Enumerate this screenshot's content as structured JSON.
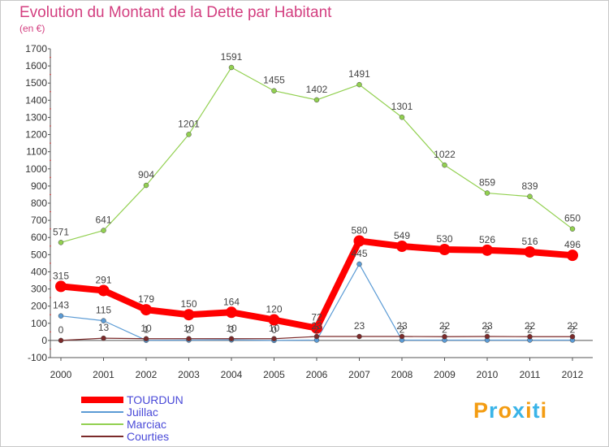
{
  "chart_data": {
    "type": "line",
    "title": "Evolution du Montant de la Dette par Habitant",
    "subtitle": "(en €)",
    "x": [
      2000,
      2001,
      2002,
      2003,
      2004,
      2005,
      2006,
      2007,
      2008,
      2009,
      2010,
      2011,
      2012
    ],
    "ylim": [
      -100,
      1700
    ],
    "yticks": [
      -100,
      0,
      100,
      200,
      300,
      400,
      500,
      600,
      700,
      800,
      900,
      1000,
      1100,
      1200,
      1300,
      1400,
      1500,
      1600,
      1700
    ],
    "grid": false,
    "legend_position": "bottom-left",
    "series": [
      {
        "name": "TOURDUN",
        "color": "#ff0000",
        "values": [
          315,
          291,
          179,
          150,
          164,
          120,
          72,
          580,
          549,
          530,
          526,
          516,
          496
        ]
      },
      {
        "name": "Juillac",
        "color": "#5b9bd5",
        "values": [
          143,
          115,
          1,
          2,
          3,
          0,
          2,
          445,
          2,
          2,
          2,
          2,
          2
        ]
      },
      {
        "name": "Marciac",
        "color": "#92d050",
        "values": [
          571,
          641,
          904,
          1201,
          1591,
          1455,
          1402,
          1491,
          1301,
          1022,
          859,
          839,
          650
        ]
      },
      {
        "name": "Courties",
        "color": "#7b2a2a",
        "values": [
          0,
          13,
          10,
          10,
          10,
          10,
          23,
          23,
          23,
          22,
          23,
          22,
          22
        ]
      }
    ]
  },
  "logo": {
    "text": "Proxiti",
    "colors": [
      "#f39c12",
      "#3ab4e8",
      "#f39c12",
      "#3ab4e8",
      "#f39c12",
      "#3ab4e8",
      "#f39c12"
    ]
  }
}
